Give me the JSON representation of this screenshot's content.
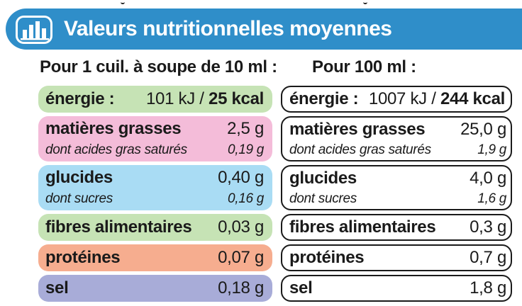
{
  "header": {
    "title": "Valeurs nutritionnelles moyennes",
    "icon": "bar-chart-icon",
    "color": "#2f8ec9"
  },
  "columns": {
    "left_header": "Pour 1 cuil. à soupe de 10 ml :",
    "right_header": "Pour 100 ml :"
  },
  "colors": {
    "energy": "#c6e3b5",
    "fat": "#f4bcd9",
    "carbs": "#a9dcf4",
    "fiber": "#c6e3b5",
    "protein": "#f6ad8f",
    "salt": "#a8acd8"
  },
  "left": {
    "energy": {
      "label": "énergie :",
      "kj": "101 kJ",
      "sep": " / ",
      "kcal": "25 kcal"
    },
    "fat": {
      "label": "matières grasses",
      "value": "2,5 g",
      "sub_label": "dont acides gras saturés",
      "sub_value": "0,19 g"
    },
    "carbs": {
      "label": "glucides",
      "value": "0,40 g",
      "sub_label": "dont sucres",
      "sub_value": "0,16 g"
    },
    "fiber": {
      "label": "fibres alimentaires",
      "value": "0,03 g"
    },
    "protein": {
      "label": "protéines",
      "value": "0,07 g"
    },
    "salt": {
      "label": "sel",
      "value": "0,18 g"
    }
  },
  "right": {
    "energy": {
      "label": "énergie :",
      "kj": "1007 kJ",
      "sep": " / ",
      "kcal": "244 kcal"
    },
    "fat": {
      "label": "matières grasses",
      "value": "25,0 g",
      "sub_label": "dont acides gras saturés",
      "sub_value": "1,9 g"
    },
    "carbs": {
      "label": "glucides",
      "value": "4,0 g",
      "sub_label": "dont sucres",
      "sub_value": "1,6 g"
    },
    "fiber": {
      "label": "fibres alimentaires",
      "value": "0,3 g"
    },
    "protein": {
      "label": "protéines",
      "value": "0,7 g"
    },
    "salt": {
      "label": "sel",
      "value": "1,8 g"
    }
  }
}
